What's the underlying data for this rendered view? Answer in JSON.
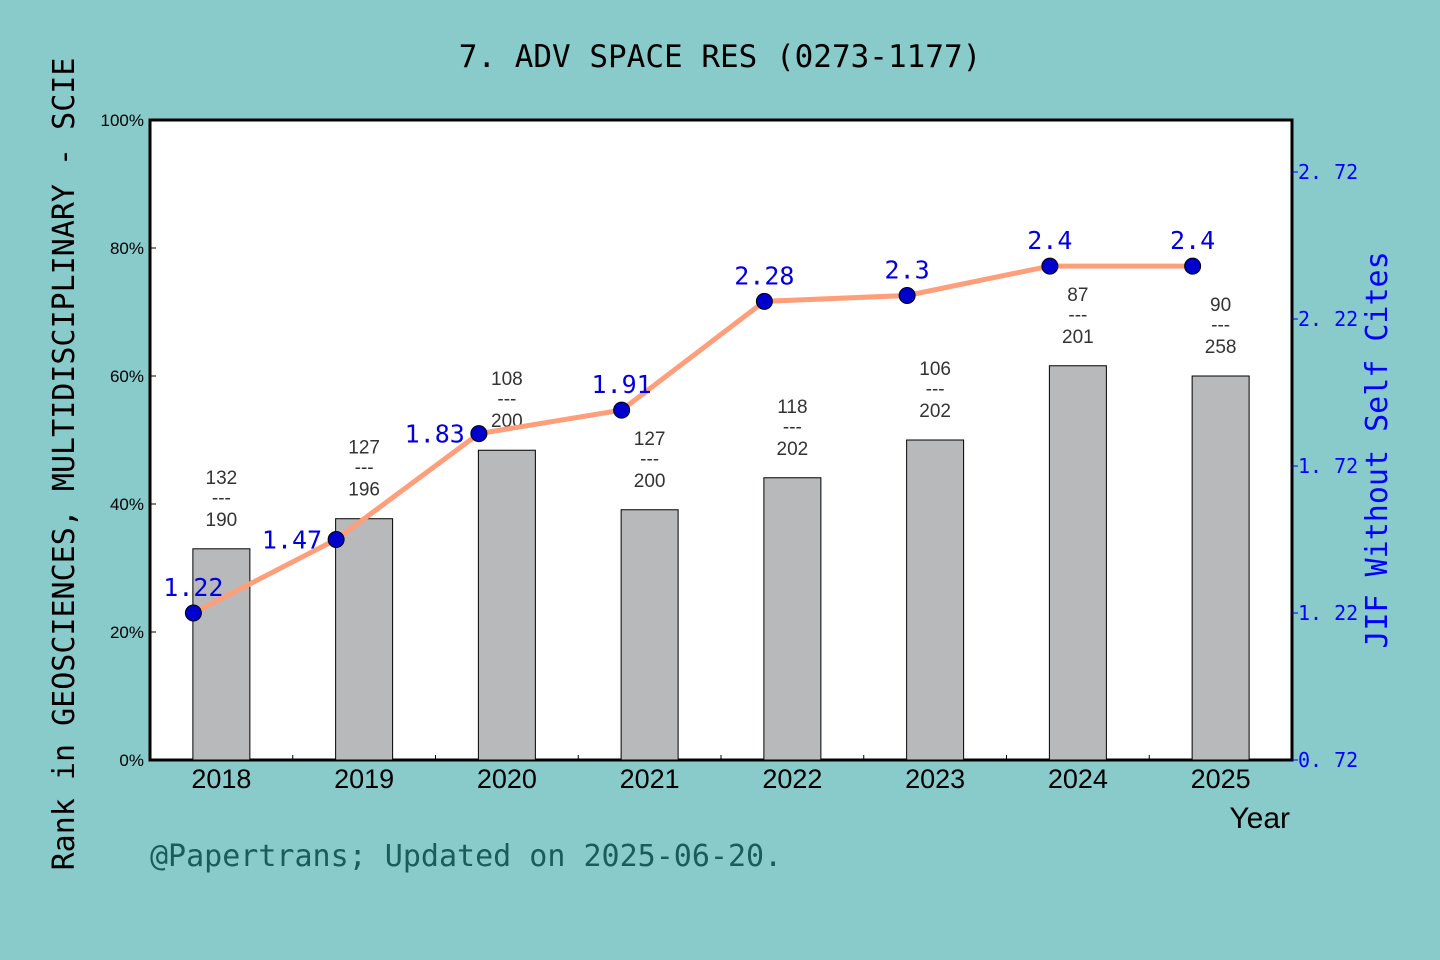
{
  "chart_data": {
    "type": "bar+line",
    "title": "7. ADV SPACE RES (0273-1177)",
    "xlabel": "Year",
    "ylabel_left": "Rank in GEOSCIENCES, MULTIDISCIPLINARY - SCIE",
    "ylabel_right": "JIF Without Self Cites",
    "footer": "@Papertrans; Updated on 2025-06-20.",
    "categories": [
      "2018",
      "2019",
      "2020",
      "2021",
      "2022",
      "2023",
      "2024",
      "2025"
    ],
    "left_axis": {
      "ylim": [
        0,
        100
      ],
      "ticks": [
        "0%",
        "20%",
        "40%",
        "60%",
        "80%",
        "100%"
      ]
    },
    "right_axis": {
      "ylim": [
        0.72,
        2.92
      ],
      "ticks": [
        "0.72",
        "1.22",
        "1.72",
        "2.22",
        "2.72"
      ],
      "color": "#0000ff"
    },
    "bars": {
      "values_percent": [
        33.0,
        37.7,
        48.4,
        39.1,
        44.1,
        50.0,
        61.6,
        60.0
      ],
      "color": "#b8b9ba"
    },
    "rank_labels": [
      {
        "rank": "132",
        "total": "190"
      },
      {
        "rank": "127",
        "total": "196"
      },
      {
        "rank": "108",
        "total": "200"
      },
      {
        "rank": "127",
        "total": "200"
      },
      {
        "rank": "118",
        "total": "202"
      },
      {
        "rank": "106",
        "total": "202"
      },
      {
        "rank": "87",
        "total": "201"
      },
      {
        "rank": "90",
        "total": "258"
      }
    ],
    "line": {
      "values": [
        1.22,
        1.47,
        1.83,
        1.91,
        2.28,
        2.3,
        2.4,
        2.4
      ],
      "labels": [
        "1.22",
        "1.47",
        "1.83",
        "1.91",
        "2.28",
        "2.3",
        "2.4",
        "2.4"
      ],
      "color": "#ff9e7a",
      "marker_color": "#0000cc"
    },
    "grid": false
  }
}
